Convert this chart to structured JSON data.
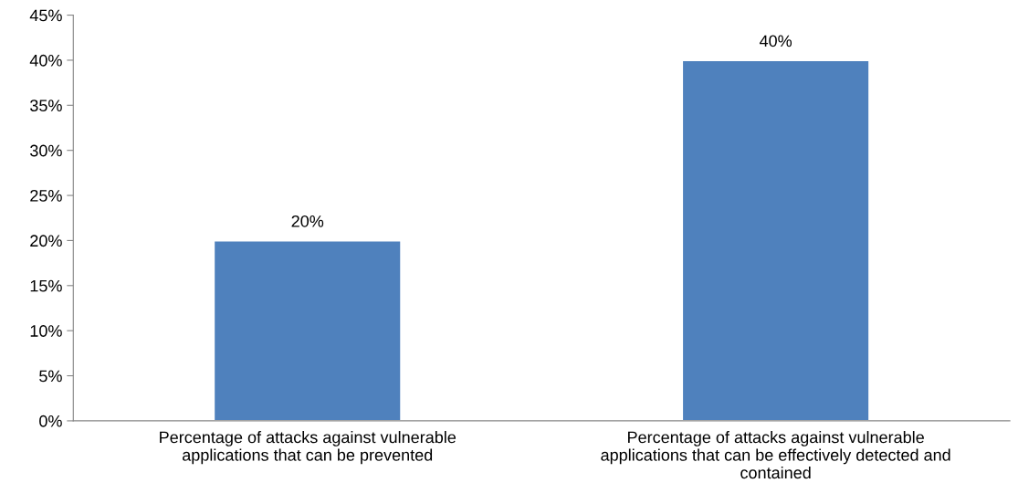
{
  "chart_data": {
    "type": "bar",
    "categories": [
      "Percentage of attacks against vulnerable\napplications that can be prevented",
      "Percentage of attacks against vulnerable\napplications that can be effectively detected and\ncontained"
    ],
    "values": [
      20,
      40
    ],
    "value_labels": [
      "20%",
      "40%"
    ],
    "color": "#4f81bd",
    "ylim": [
      0,
      45
    ],
    "yticks": [
      {
        "value": 0,
        "label": "0%"
      },
      {
        "value": 5,
        "label": "5%"
      },
      {
        "value": 10,
        "label": "10%"
      },
      {
        "value": 15,
        "label": "15%"
      },
      {
        "value": 20,
        "label": "20%"
      },
      {
        "value": 25,
        "label": "25%"
      },
      {
        "value": 30,
        "label": "30%"
      },
      {
        "value": 35,
        "label": "35%"
      },
      {
        "value": 40,
        "label": "40%"
      },
      {
        "value": 45,
        "label": "45%"
      }
    ],
    "grid": false,
    "legend": false
  }
}
